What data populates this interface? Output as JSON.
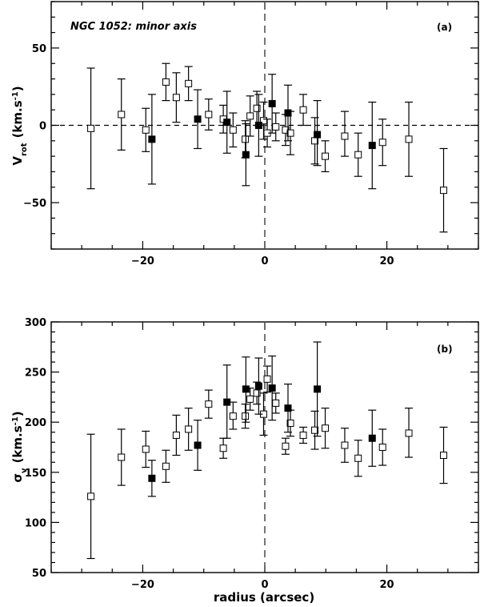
{
  "chart_data": [
    {
      "type": "scatter",
      "panel_label": "(a)",
      "annotation": "NGC 1052: minor axis",
      "ylabel_main": "V",
      "ylabel_sub": "rot",
      "ylabel_unit": "(km.s",
      "ylabel_exp": "-1",
      "ylabel_close": ")",
      "xlim": [
        -35,
        35
      ],
      "ylim": [
        -80,
        80
      ],
      "xticks": [
        -20,
        0,
        20
      ],
      "yticks": [
        -50,
        0,
        50
      ],
      "ytick_labels": [
        "−50",
        "0",
        "50"
      ],
      "xtick_labels": [
        "−20",
        "0",
        "20"
      ],
      "zero_line": true,
      "center_line": true,
      "series": [
        {
          "marker": "open-square",
          "points": [
            {
              "x": -28.5,
              "y": -2,
              "lo": -41,
              "hi": 37
            },
            {
              "x": -23.5,
              "y": 7,
              "lo": -16,
              "hi": 30
            },
            {
              "x": -19.5,
              "y": -3,
              "lo": -17,
              "hi": 11
            },
            {
              "x": -16.2,
              "y": 28,
              "lo": 16,
              "hi": 40
            },
            {
              "x": -14.5,
              "y": 18,
              "lo": 2,
              "hi": 34
            },
            {
              "x": -12.5,
              "y": 27,
              "lo": 16,
              "hi": 38
            },
            {
              "x": -9.2,
              "y": 7,
              "lo": -3,
              "hi": 17
            },
            {
              "x": -6.8,
              "y": 4,
              "lo": -5,
              "hi": 13
            },
            {
              "x": -5.2,
              "y": -3,
              "lo": -14,
              "hi": 8
            },
            {
              "x": -3.2,
              "y": -9,
              "lo": -21,
              "hi": 3
            },
            {
              "x": -2.4,
              "y": 6,
              "lo": -7,
              "hi": 19
            },
            {
              "x": -1.3,
              "y": 11,
              "lo": 0,
              "hi": 22
            },
            {
              "x": -0.2,
              "y": 3,
              "lo": -9,
              "hi": 15
            },
            {
              "x": 0.4,
              "y": -5,
              "lo": -14,
              "hi": 4
            },
            {
              "x": 1.8,
              "y": -1,
              "lo": -10,
              "hi": 8
            },
            {
              "x": 3.4,
              "y": -3,
              "lo": -13,
              "hi": 7
            },
            {
              "x": 4.2,
              "y": -5,
              "lo": -19,
              "hi": 9
            },
            {
              "x": 6.3,
              "y": 10,
              "lo": 0,
              "hi": 20
            },
            {
              "x": 8.2,
              "y": -10,
              "lo": -25,
              "hi": 5
            },
            {
              "x": 9.9,
              "y": -20,
              "lo": -30,
              "hi": -10
            },
            {
              "x": 13.1,
              "y": -7,
              "lo": -20,
              "hi": 9
            },
            {
              "x": 15.3,
              "y": -19,
              "lo": -33,
              "hi": -5
            },
            {
              "x": 19.3,
              "y": -11,
              "lo": -26,
              "hi": 4
            },
            {
              "x": 23.6,
              "y": -9,
              "lo": -33,
              "hi": 15
            },
            {
              "x": 29.3,
              "y": -42,
              "lo": -69,
              "hi": -15
            }
          ]
        },
        {
          "marker": "filled-square",
          "points": [
            {
              "x": -18.5,
              "y": -9,
              "lo": -38,
              "hi": 20
            },
            {
              "x": -11.0,
              "y": 4,
              "lo": -15,
              "hi": 23
            },
            {
              "x": -6.2,
              "y": 2,
              "lo": -18,
              "hi": 22
            },
            {
              "x": -3.1,
              "y": -19,
              "lo": -39,
              "hi": 1
            },
            {
              "x": -1.0,
              "y": 0,
              "lo": -20,
              "hi": 20
            },
            {
              "x": 1.2,
              "y": 14,
              "lo": -5,
              "hi": 33
            },
            {
              "x": 3.8,
              "y": 8,
              "lo": -10,
              "hi": 26
            },
            {
              "x": 8.6,
              "y": -6,
              "lo": -26,
              "hi": 16
            },
            {
              "x": 17.6,
              "y": -13,
              "lo": -41,
              "hi": 15
            }
          ]
        }
      ]
    },
    {
      "type": "scatter",
      "panel_label": "(b)",
      "xlabel": "radius (arcsec)",
      "ylabel_main": "σ",
      "ylabel_sub": "v",
      "ylabel_unit": "(km.s",
      "ylabel_exp": "-1",
      "ylabel_close": ")",
      "xlim": [
        -35,
        35
      ],
      "ylim": [
        50,
        300
      ],
      "xticks": [
        -20,
        0,
        20
      ],
      "yticks": [
        50,
        100,
        150,
        200,
        250,
        300
      ],
      "ytick_labels": [
        "50",
        "100",
        "150",
        "200",
        "250",
        "300"
      ],
      "xtick_labels": [
        "−20",
        "0",
        "20"
      ],
      "center_line": true,
      "series": [
        {
          "marker": "open-square",
          "points": [
            {
              "x": -28.5,
              "y": 126,
              "lo": 64,
              "hi": 188
            },
            {
              "x": -23.5,
              "y": 165,
              "lo": 137,
              "hi": 193
            },
            {
              "x": -19.5,
              "y": 173,
              "lo": 155,
              "hi": 191
            },
            {
              "x": -16.2,
              "y": 156,
              "lo": 140,
              "hi": 172
            },
            {
              "x": -14.5,
              "y": 187,
              "lo": 167,
              "hi": 207
            },
            {
              "x": -12.5,
              "y": 193,
              "lo": 172,
              "hi": 214
            },
            {
              "x": -9.2,
              "y": 218,
              "lo": 204,
              "hi": 232
            },
            {
              "x": -6.8,
              "y": 174,
              "lo": 164,
              "hi": 184
            },
            {
              "x": -5.2,
              "y": 206,
              "lo": 193,
              "hi": 220
            },
            {
              "x": -3.2,
              "y": 206,
              "lo": 194,
              "hi": 218
            },
            {
              "x": -2.4,
              "y": 223,
              "lo": 212,
              "hi": 234
            },
            {
              "x": -1.3,
              "y": 229,
              "lo": 218,
              "hi": 240
            },
            {
              "x": -0.2,
              "y": 208,
              "lo": 187,
              "hi": 229
            },
            {
              "x": 0.4,
              "y": 243,
              "lo": 230,
              "hi": 256
            },
            {
              "x": 1.8,
              "y": 219,
              "lo": 209,
              "hi": 229
            },
            {
              "x": 3.4,
              "y": 176,
              "lo": 168,
              "hi": 184
            },
            {
              "x": 4.2,
              "y": 199,
              "lo": 186,
              "hi": 212
            },
            {
              "x": 6.3,
              "y": 187,
              "lo": 179,
              "hi": 195
            },
            {
              "x": 8.2,
              "y": 192,
              "lo": 173,
              "hi": 211
            },
            {
              "x": 9.9,
              "y": 194,
              "lo": 174,
              "hi": 214
            },
            {
              "x": 13.1,
              "y": 177,
              "lo": 160,
              "hi": 194
            },
            {
              "x": 15.3,
              "y": 164,
              "lo": 146,
              "hi": 182
            },
            {
              "x": 19.3,
              "y": 175,
              "lo": 157,
              "hi": 193
            },
            {
              "x": 23.6,
              "y": 189,
              "lo": 165,
              "hi": 214
            },
            {
              "x": 29.3,
              "y": 167,
              "lo": 139,
              "hi": 195
            }
          ]
        },
        {
          "marker": "filled-square",
          "points": [
            {
              "x": -18.5,
              "y": 144,
              "lo": 126,
              "hi": 162
            },
            {
              "x": -11.0,
              "y": 177,
              "lo": 152,
              "hi": 202
            },
            {
              "x": -6.2,
              "y": 220,
              "lo": 184,
              "hi": 257
            },
            {
              "x": -3.1,
              "y": 233,
              "lo": 200,
              "hi": 265
            },
            {
              "x": -1.0,
              "y": 236,
              "lo": 208,
              "hi": 264
            },
            {
              "x": 1.2,
              "y": 234,
              "lo": 202,
              "hi": 266
            },
            {
              "x": 3.8,
              "y": 214,
              "lo": 190,
              "hi": 238
            },
            {
              "x": 8.6,
              "y": 233,
              "lo": 186,
              "hi": 280
            },
            {
              "x": 17.6,
              "y": 184,
              "lo": 156,
              "hi": 212
            }
          ]
        }
      ]
    }
  ]
}
